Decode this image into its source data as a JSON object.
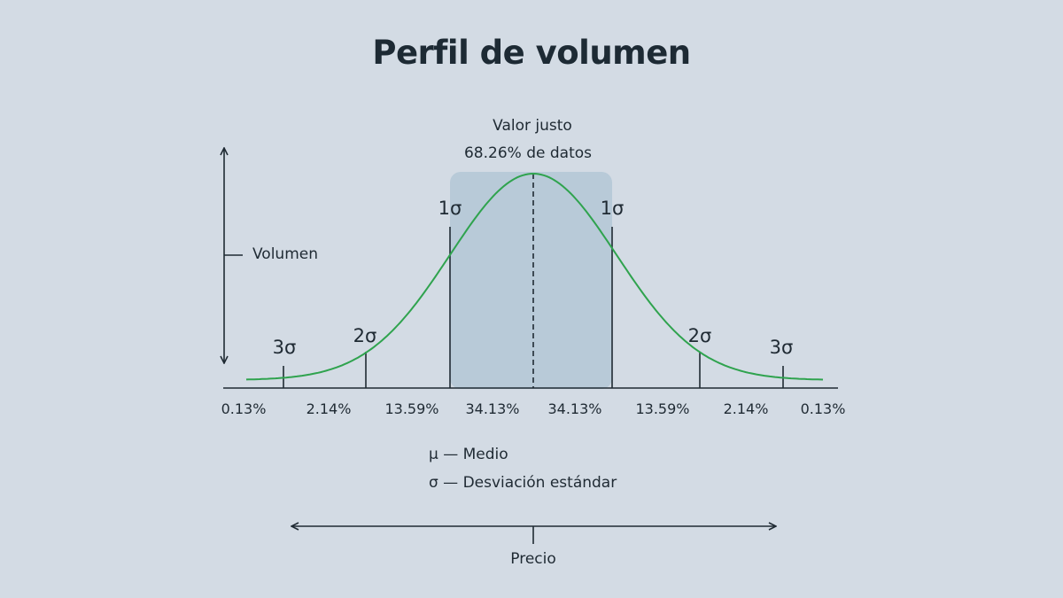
{
  "title": "Perfil de volumen",
  "fair_value": {
    "label": "Valor justo",
    "share": "68.26% de datos"
  },
  "axes": {
    "y_label": "Volumen",
    "x_label": "Precio"
  },
  "sigma_labels": {
    "left_3": "3σ",
    "left_2": "2σ",
    "left_1": "1σ",
    "right_1": "1σ",
    "right_2": "2σ",
    "right_3": "3σ"
  },
  "percentages": [
    "0.13%",
    "2.14%",
    "13.59%",
    "34.13%",
    "34.13%",
    "13.59%",
    "2.14%",
    "0.13%"
  ],
  "legend": {
    "mu": "μ — Medio",
    "sigma": "σ — Desviación estándar"
  },
  "colors": {
    "background": "#d3dbe4",
    "curve": "#2fa34e",
    "highlight": "#b8cad8",
    "ink": "#1f2a33"
  }
}
